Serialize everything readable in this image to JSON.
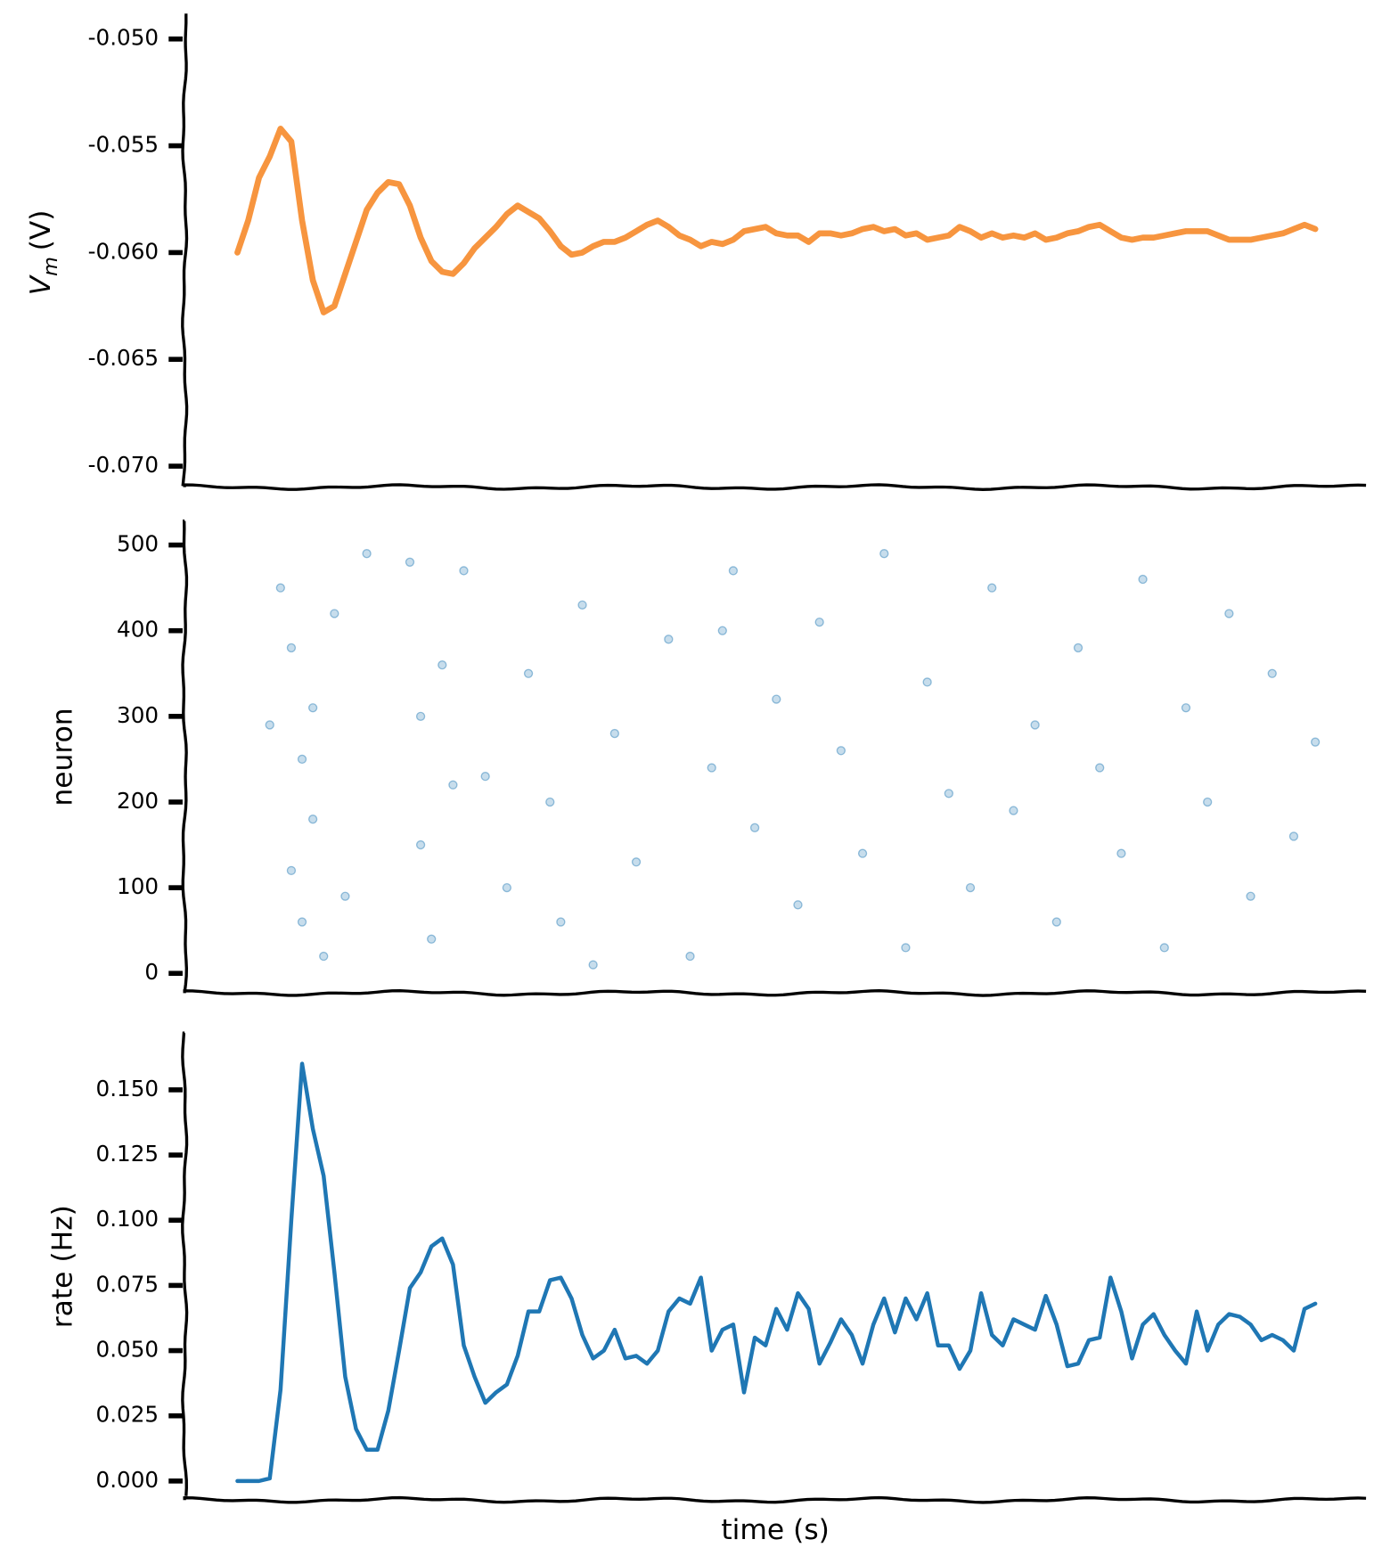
{
  "chart_data": [
    {
      "type": "line",
      "ylabel": {
        "symbol": "V",
        "subscript": "m",
        "unit": "(V)"
      },
      "xlim": [
        -4.9,
        104.8
      ],
      "ylim": [
        -0.07098,
        -0.04888
      ],
      "yticks": [
        {
          "value": -0.05,
          "label": "-0.050"
        },
        {
          "value": -0.055,
          "label": "-0.055"
        },
        {
          "value": -0.06,
          "label": "-0.060"
        },
        {
          "value": -0.065,
          "label": "-0.065"
        },
        {
          "value": -0.07,
          "label": "-0.070"
        }
      ],
      "x": [
        0,
        1,
        2,
        3,
        4,
        5,
        6,
        7,
        8,
        9,
        10,
        11,
        12,
        13,
        14,
        15,
        16,
        17,
        18,
        19,
        20,
        21,
        22,
        23,
        24,
        25,
        26,
        27,
        28,
        29,
        30,
        31,
        32,
        33,
        34,
        35,
        36,
        37,
        38,
        39,
        40,
        41,
        42,
        43,
        44,
        45,
        46,
        47,
        48,
        49,
        50,
        51,
        52,
        53,
        54,
        55,
        56,
        57,
        58,
        59,
        60,
        61,
        62,
        63,
        64,
        65,
        66,
        67,
        68,
        69,
        70,
        71,
        72,
        73,
        74,
        75,
        76,
        77,
        78,
        79,
        80,
        81,
        82,
        83,
        84,
        85,
        86,
        87,
        88,
        89,
        90,
        91,
        92,
        93,
        94,
        95,
        96,
        97,
        98,
        99,
        100
      ],
      "series": [
        {
          "color": "#f7953f",
          "values": [
            -0.06,
            -0.0585,
            -0.0565,
            -0.0555,
            -0.0542,
            -0.0548,
            -0.0585,
            -0.0613,
            -0.0628,
            -0.0625,
            -0.061,
            -0.0595,
            -0.058,
            -0.0572,
            -0.0567,
            -0.0568,
            -0.0578,
            -0.0593,
            -0.0604,
            -0.0609,
            -0.061,
            -0.0605,
            -0.0598,
            -0.0593,
            -0.0588,
            -0.0582,
            -0.0578,
            -0.0581,
            -0.0584,
            -0.059,
            -0.0597,
            -0.0601,
            -0.06,
            -0.0597,
            -0.0595,
            -0.0595,
            -0.0593,
            -0.059,
            -0.0587,
            -0.0585,
            -0.0588,
            -0.0592,
            -0.0594,
            -0.0597,
            -0.0595,
            -0.0596,
            -0.0594,
            -0.059,
            -0.0589,
            -0.0588,
            -0.0591,
            -0.0592,
            -0.0592,
            -0.0595,
            -0.0591,
            -0.0591,
            -0.0592,
            -0.0591,
            -0.0589,
            -0.0588,
            -0.059,
            -0.0589,
            -0.0592,
            -0.0591,
            -0.0594,
            -0.0593,
            -0.0592,
            -0.0588,
            -0.059,
            -0.0593,
            -0.0591,
            -0.0593,
            -0.0592,
            -0.0593,
            -0.0591,
            -0.0594,
            -0.0593,
            -0.0591,
            -0.059,
            -0.0588,
            -0.0587,
            -0.059,
            -0.0593,
            -0.0594,
            -0.0593,
            -0.0593,
            -0.0592,
            -0.0591,
            -0.059,
            -0.059,
            -0.059,
            -0.0592,
            -0.0594,
            -0.0594,
            -0.0594,
            -0.0593,
            -0.0592,
            -0.0591,
            -0.0589,
            -0.0587,
            -0.0589
          ]
        }
      ]
    },
    {
      "type": "scatter",
      "ylabel": "neuron",
      "xlim": [
        -4.9,
        104.8
      ],
      "ylim": [
        -23,
        528
      ],
      "yticks": [
        0,
        100,
        200,
        300,
        400,
        500
      ],
      "color": "#1f77b4",
      "x": [
        4,
        5,
        5,
        6,
        6,
        7,
        7,
        8,
        9,
        10,
        16,
        17,
        17,
        18,
        19,
        20,
        21,
        25,
        27,
        29,
        30,
        32,
        35,
        37,
        40,
        42,
        44,
        46,
        48,
        50,
        52,
        54,
        56,
        58,
        60,
        62,
        64,
        66,
        68,
        70,
        72,
        74,
        76,
        78,
        80,
        82,
        84,
        86,
        88,
        90,
        92,
        94,
        96,
        98,
        100,
        3,
        12,
        23,
        33,
        45
      ],
      "values": [
        450,
        120,
        380,
        60,
        250,
        310,
        180,
        20,
        420,
        90,
        480,
        150,
        300,
        40,
        360,
        220,
        470,
        100,
        350,
        200,
        60,
        430,
        280,
        130,
        390,
        20,
        240,
        470,
        170,
        320,
        80,
        410,
        260,
        140,
        490,
        30,
        340,
        210,
        100,
        450,
        190,
        290,
        60,
        380,
        240,
        140,
        460,
        30,
        310,
        200,
        420,
        90,
        350,
        160,
        270,
        290,
        490,
        230,
        10,
        400
      ]
    },
    {
      "type": "line",
      "ylabel": "rate (Hz)",
      "xlabel": "time (s)",
      "xlim": [
        -4.9,
        104.8
      ],
      "ylim": [
        -0.0073,
        0.1718
      ],
      "yticks": [
        {
          "value": 0,
          "label": "0.000"
        },
        {
          "value": 0.025,
          "label": "0.025"
        },
        {
          "value": 0.05,
          "label": "0.050"
        },
        {
          "value": 0.075,
          "label": "0.075"
        },
        {
          "value": 0.1,
          "label": "0.100"
        },
        {
          "value": 0.125,
          "label": "0.125"
        },
        {
          "value": 0.15,
          "label": "0.150"
        }
      ],
      "x": [
        0,
        1,
        2,
        3,
        4,
        5,
        6,
        7,
        8,
        9,
        10,
        11,
        12,
        13,
        14,
        15,
        16,
        17,
        18,
        19,
        20,
        21,
        22,
        23,
        24,
        25,
        26,
        27,
        28,
        29,
        30,
        31,
        32,
        33,
        34,
        35,
        36,
        37,
        38,
        39,
        40,
        41,
        42,
        43,
        44,
        45,
        46,
        47,
        48,
        49,
        50,
        51,
        52,
        53,
        54,
        55,
        56,
        57,
        58,
        59,
        60,
        61,
        62,
        63,
        64,
        65,
        66,
        67,
        68,
        69,
        70,
        71,
        72,
        73,
        74,
        75,
        76,
        77,
        78,
        79,
        80,
        81,
        82,
        83,
        84,
        85,
        86,
        87,
        88,
        89,
        90,
        91,
        92,
        93,
        94,
        95,
        96,
        97,
        98,
        99,
        100
      ],
      "series": [
        {
          "color": "#1f77b4",
          "values": [
            0,
            0,
            0,
            0.001,
            0.035,
            0.1,
            0.16,
            0.135,
            0.117,
            0.08,
            0.04,
            0.02,
            0.012,
            0.012,
            0.027,
            0.05,
            0.074,
            0.08,
            0.09,
            0.093,
            0.083,
            0.052,
            0.04,
            0.03,
            0.034,
            0.037,
            0.048,
            0.065,
            0.065,
            0.077,
            0.078,
            0.07,
            0.056,
            0.047,
            0.05,
            0.058,
            0.047,
            0.048,
            0.045,
            0.05,
            0.065,
            0.07,
            0.068,
            0.078,
            0.05,
            0.058,
            0.06,
            0.034,
            0.055,
            0.052,
            0.066,
            0.058,
            0.072,
            0.066,
            0.045,
            0.053,
            0.062,
            0.056,
            0.045,
            0.06,
            0.07,
            0.057,
            0.07,
            0.062,
            0.072,
            0.052,
            0.052,
            0.043,
            0.05,
            0.072,
            0.056,
            0.052,
            0.062,
            0.06,
            0.058,
            0.071,
            0.06,
            0.044,
            0.045,
            0.054,
            0.055,
            0.078,
            0.065,
            0.047,
            0.06,
            0.064,
            0.056,
            0.05,
            0.045,
            0.065,
            0.05,
            0.06,
            0.064,
            0.063,
            0.06,
            0.054,
            0.056,
            0.054,
            0.05,
            0.066,
            0.068
          ]
        }
      ]
    }
  ]
}
